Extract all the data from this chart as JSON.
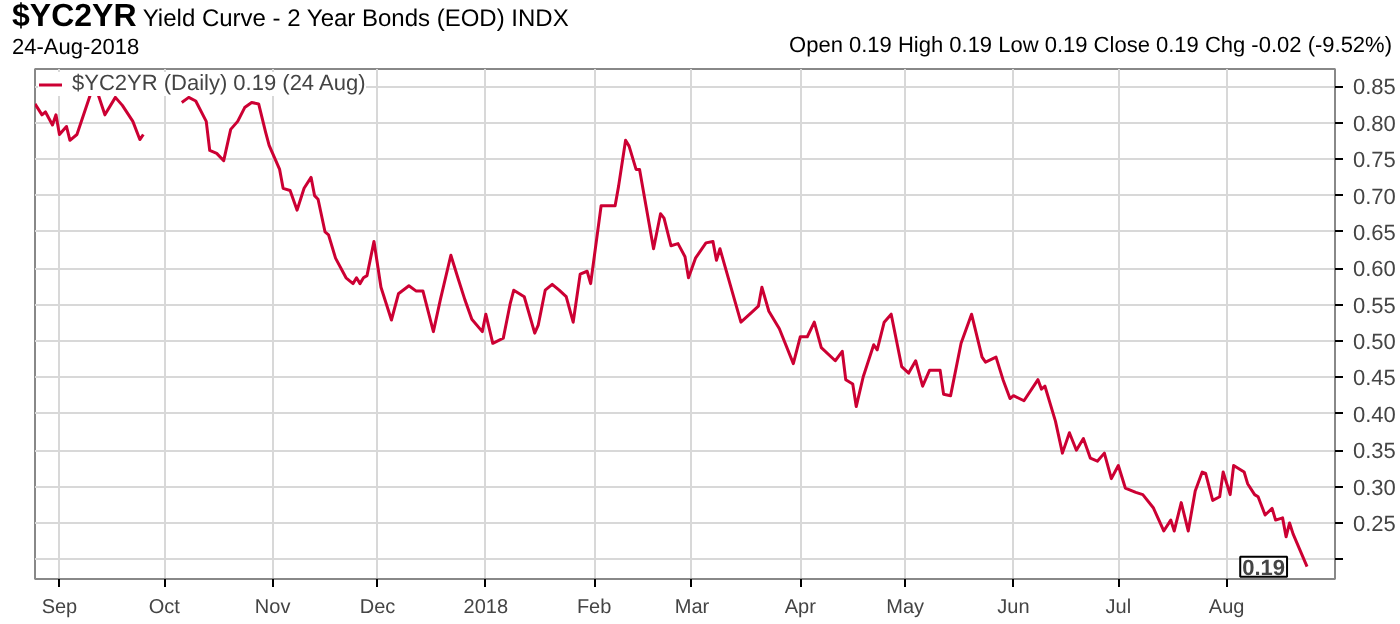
{
  "chart_data": {
    "type": "line",
    "title": "$YC2YR Yield Curve - 2 Year Bonds (EOD) INDX",
    "subtitle": "24-Aug-2018",
    "annotations": [
      "Open 0.19  High 0.19  Low 0.19  Close 0.19  Chg -0.02 (-9.52%)",
      {
        "text": "0.19",
        "x": "2018-08-24",
        "y": 0.19
      }
    ],
    "x": [
      "2017-08-25",
      "2017-08-27",
      "2017-08-28",
      "2017-08-30",
      "2017-08-31",
      "2017-09-01",
      "2017-09-03",
      "2017-09-04",
      "2017-09-06",
      "2017-09-10",
      "2017-09-12",
      "2017-09-14",
      "2017-09-17",
      "2017-09-19",
      "2017-09-22",
      "2017-09-24",
      "2017-09-25",
      "2017-09-28",
      "2017-10-06",
      "2017-10-08",
      "2017-10-10",
      "2017-10-13",
      "2017-10-14",
      "2017-10-16",
      "2017-10-18",
      "2017-10-20",
      "2017-10-22",
      "2017-10-24",
      "2017-10-26",
      "2017-10-28",
      "2017-10-30",
      "2017-10-31",
      "2017-11-03",
      "2017-11-04",
      "2017-11-06",
      "2017-11-08",
      "2017-11-10",
      "2017-11-12",
      "2017-11-13",
      "2017-11-14",
      "2017-11-16",
      "2017-11-17",
      "2017-11-19",
      "2017-11-22",
      "2017-11-24",
      "2017-11-25",
      "2017-11-26",
      "2017-11-27",
      "2017-11-28",
      "2017-11-30",
      "2017-12-02",
      "2017-12-05",
      "2017-12-07",
      "2017-12-10",
      "2017-12-12",
      "2017-12-14",
      "2017-12-17",
      "2017-12-19",
      "2017-12-22",
      "2017-12-24",
      "2017-12-26",
      "2017-12-28",
      "2017-12-31",
      "2018-01-01",
      "2018-01-03",
      "2018-01-06",
      "2018-01-08",
      "2018-01-09",
      "2018-01-12",
      "2018-01-15",
      "2018-01-16",
      "2018-01-18",
      "2018-01-20",
      "2018-01-22",
      "2018-01-24",
      "2018-01-26",
      "2018-01-28",
      "2018-01-30",
      "2018-01-31",
      "2018-02-03",
      "2018-02-07",
      "2018-02-08",
      "2018-02-10",
      "2018-02-11",
      "2018-02-13",
      "2018-02-14",
      "2018-02-18",
      "2018-02-20",
      "2018-02-21",
      "2018-02-23",
      "2018-02-25",
      "2018-02-27",
      "2018-02-28",
      "2018-03-02",
      "2018-03-05",
      "2018-03-07",
      "2018-03-08",
      "2018-03-09",
      "2018-03-15",
      "2018-03-18",
      "2018-03-20",
      "2018-03-21",
      "2018-03-23",
      "2018-03-26",
      "2018-03-30",
      "2018-04-01",
      "2018-04-03",
      "2018-04-05",
      "2018-04-07",
      "2018-04-11",
      "2018-04-13",
      "2018-04-14",
      "2018-04-16",
      "2018-04-17",
      "2018-04-19",
      "2018-04-22",
      "2018-04-23",
      "2018-04-25",
      "2018-04-27",
      "2018-04-30",
      "2018-05-02",
      "2018-05-04",
      "2018-05-06",
      "2018-05-08",
      "2018-05-11",
      "2018-05-12",
      "2018-05-14",
      "2018-05-17",
      "2018-05-20",
      "2018-05-23",
      "2018-05-24",
      "2018-05-27",
      "2018-05-29",
      "2018-05-31",
      "2018-06-01",
      "2018-06-04",
      "2018-06-08",
      "2018-06-09",
      "2018-06-10",
      "2018-06-13",
      "2018-06-15",
      "2018-06-17",
      "2018-06-19",
      "2018-06-21",
      "2018-06-23",
      "2018-06-25",
      "2018-06-27",
      "2018-06-29",
      "2018-07-01",
      "2018-07-03",
      "2018-07-06",
      "2018-07-08",
      "2018-07-11",
      "2018-07-14",
      "2018-07-16",
      "2018-07-17",
      "2018-07-19",
      "2018-07-21",
      "2018-07-23",
      "2018-07-25",
      "2018-07-26",
      "2018-07-28",
      "2018-07-30",
      "2018-07-31",
      "2018-08-02",
      "2018-08-03",
      "2018-08-06",
      "2018-08-07",
      "2018-08-09",
      "2018-08-10",
      "2018-08-12",
      "2018-08-14",
      "2018-08-15",
      "2018-08-17",
      "2018-08-18",
      "2018-08-19",
      "2018-08-20",
      "2018-08-24"
    ],
    "series": [
      {
        "name": "$YC2YR (Daily) 0.19 (24 Aug)",
        "color": "#cc0033",
        "values": [
          0.826,
          0.811,
          0.815,
          0.797,
          0.811,
          0.784,
          0.795,
          0.776,
          0.784,
          0.841,
          0.84,
          0.811,
          0.835,
          0.824,
          0.802,
          0.777,
          0.784,
          null,
          0.828,
          0.835,
          0.83,
          0.802,
          0.762,
          0.758,
          0.748,
          0.791,
          0.802,
          0.821,
          0.828,
          0.826,
          0.787,
          0.769,
          0.736,
          0.71,
          0.707,
          0.68,
          0.71,
          0.725,
          0.7,
          0.695,
          0.65,
          0.646,
          0.614,
          0.587,
          0.579,
          0.587,
          0.579,
          0.587,
          0.59,
          0.637,
          0.574,
          0.529,
          0.565,
          0.576,
          0.569,
          0.569,
          0.513,
          0.557,
          0.618,
          0.587,
          0.557,
          0.53,
          0.513,
          0.537,
          0.497,
          0.504,
          0.552,
          0.57,
          0.561,
          0.511,
          0.522,
          0.57,
          0.578,
          0.57,
          0.561,
          0.526,
          0.592,
          0.596,
          0.579,
          0.686,
          0.686,
          0.713,
          0.776,
          0.768,
          0.736,
          0.736,
          0.627,
          0.675,
          0.669,
          0.631,
          0.634,
          0.616,
          0.587,
          0.614,
          0.635,
          0.637,
          0.611,
          0.627,
          0.526,
          0.539,
          0.548,
          0.574,
          0.541,
          0.517,
          0.469,
          0.506,
          0.506,
          0.526,
          0.491,
          0.473,
          0.486,
          0.447,
          0.441,
          0.41,
          0.451,
          0.495,
          0.488,
          0.526,
          0.537,
          0.465,
          0.456,
          0.473,
          0.438,
          0.46,
          0.46,
          0.427,
          0.425,
          0.497,
          0.537,
          0.478,
          0.471,
          0.478,
          0.447,
          0.421,
          0.425,
          0.418,
          0.447,
          0.434,
          0.438,
          0.39,
          0.346,
          0.374,
          0.35,
          0.366,
          0.339,
          0.335,
          0.346,
          0.311,
          0.329,
          0.298,
          0.292,
          0.289,
          0.271,
          0.239,
          0.254,
          0.239,
          0.278,
          0.239,
          0.294,
          0.32,
          0.318,
          0.281,
          0.286,
          0.32,
          0.289,
          0.329,
          0.32,
          0.304,
          0.289,
          0.286,
          0.261,
          0.27,
          0.254,
          0.257,
          0.231,
          0.25,
          0.235,
          0.19
        ]
      }
    ],
    "xlim": [
      "2017-08-25",
      "2018-09-01"
    ],
    "xticks": [
      {
        "value": "2017-09-01",
        "label": "Sep"
      },
      {
        "value": "2017-10-01",
        "label": "Oct"
      },
      {
        "value": "2017-11-01",
        "label": "Nov"
      },
      {
        "value": "2017-12-01",
        "label": "Dec"
      },
      {
        "value": "2018-01-01",
        "label": "2018"
      },
      {
        "value": "2018-02-01",
        "label": "Feb"
      },
      {
        "value": "2018-03-01",
        "label": "Mar"
      },
      {
        "value": "2018-04-01",
        "label": "Apr"
      },
      {
        "value": "2018-05-01",
        "label": "May"
      },
      {
        "value": "2018-06-01",
        "label": "Jun"
      },
      {
        "value": "2018-07-01",
        "label": "Jul"
      },
      {
        "value": "2018-08-01",
        "label": "Aug"
      }
    ],
    "ylim": [
      0.173,
      0.874
    ],
    "yticks": [
      {
        "value": 0.2,
        "label": null
      },
      {
        "value": 0.25,
        "label": "0.25"
      },
      {
        "value": 0.3,
        "label": "0.30"
      },
      {
        "value": 0.35,
        "label": "0.35"
      },
      {
        "value": 0.4,
        "label": "0.40"
      },
      {
        "value": 0.45,
        "label": "0.45"
      },
      {
        "value": 0.5,
        "label": "0.50"
      },
      {
        "value": 0.55,
        "label": "0.55"
      },
      {
        "value": 0.6,
        "label": "0.60"
      },
      {
        "value": 0.65,
        "label": "0.65"
      },
      {
        "value": 0.7,
        "label": "0.70"
      },
      {
        "value": 0.75,
        "label": "0.75"
      },
      {
        "value": 0.8,
        "label": "0.80"
      },
      {
        "value": 0.85,
        "label": "0.85"
      }
    ],
    "grid": true,
    "legend": "top left",
    "marker": "none",
    "line_style": "solid"
  }
}
